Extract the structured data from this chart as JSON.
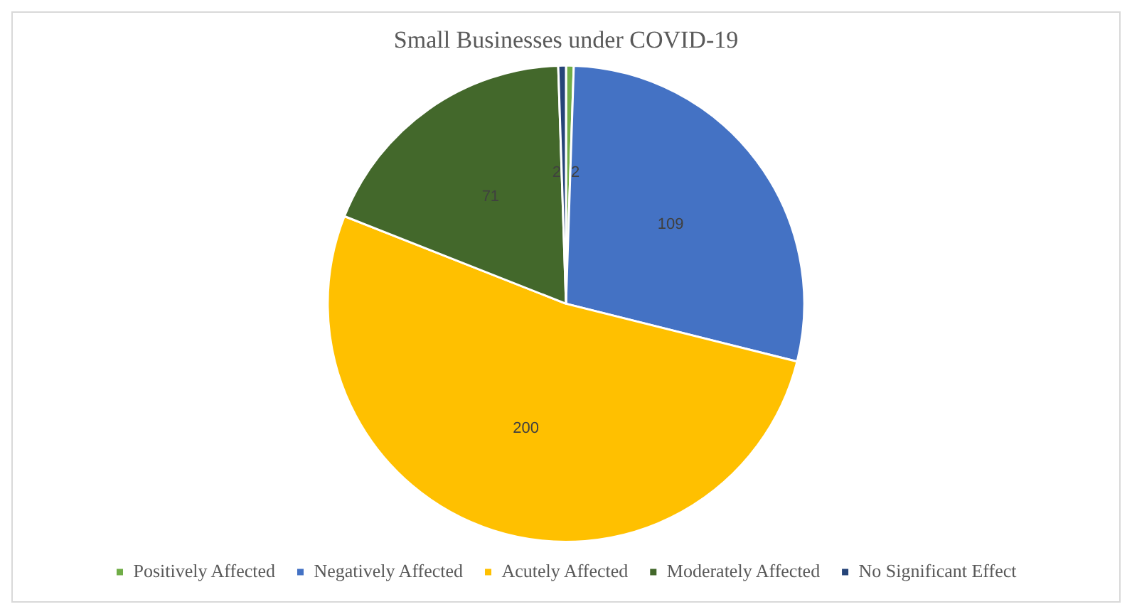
{
  "chart_data": {
    "type": "pie",
    "title": "Small Businesses under COVID-19",
    "categories": [
      "Positively Affected",
      "Negatively Affected",
      "Acutely Affected",
      "Moderately Affected",
      "No Significant Effect"
    ],
    "values": [
      2,
      109,
      200,
      71,
      2
    ],
    "colors": [
      "#70ad47",
      "#4472c4",
      "#ffc000",
      "#43682b",
      "#264478"
    ],
    "data_labels": true,
    "legend": "bottom"
  }
}
